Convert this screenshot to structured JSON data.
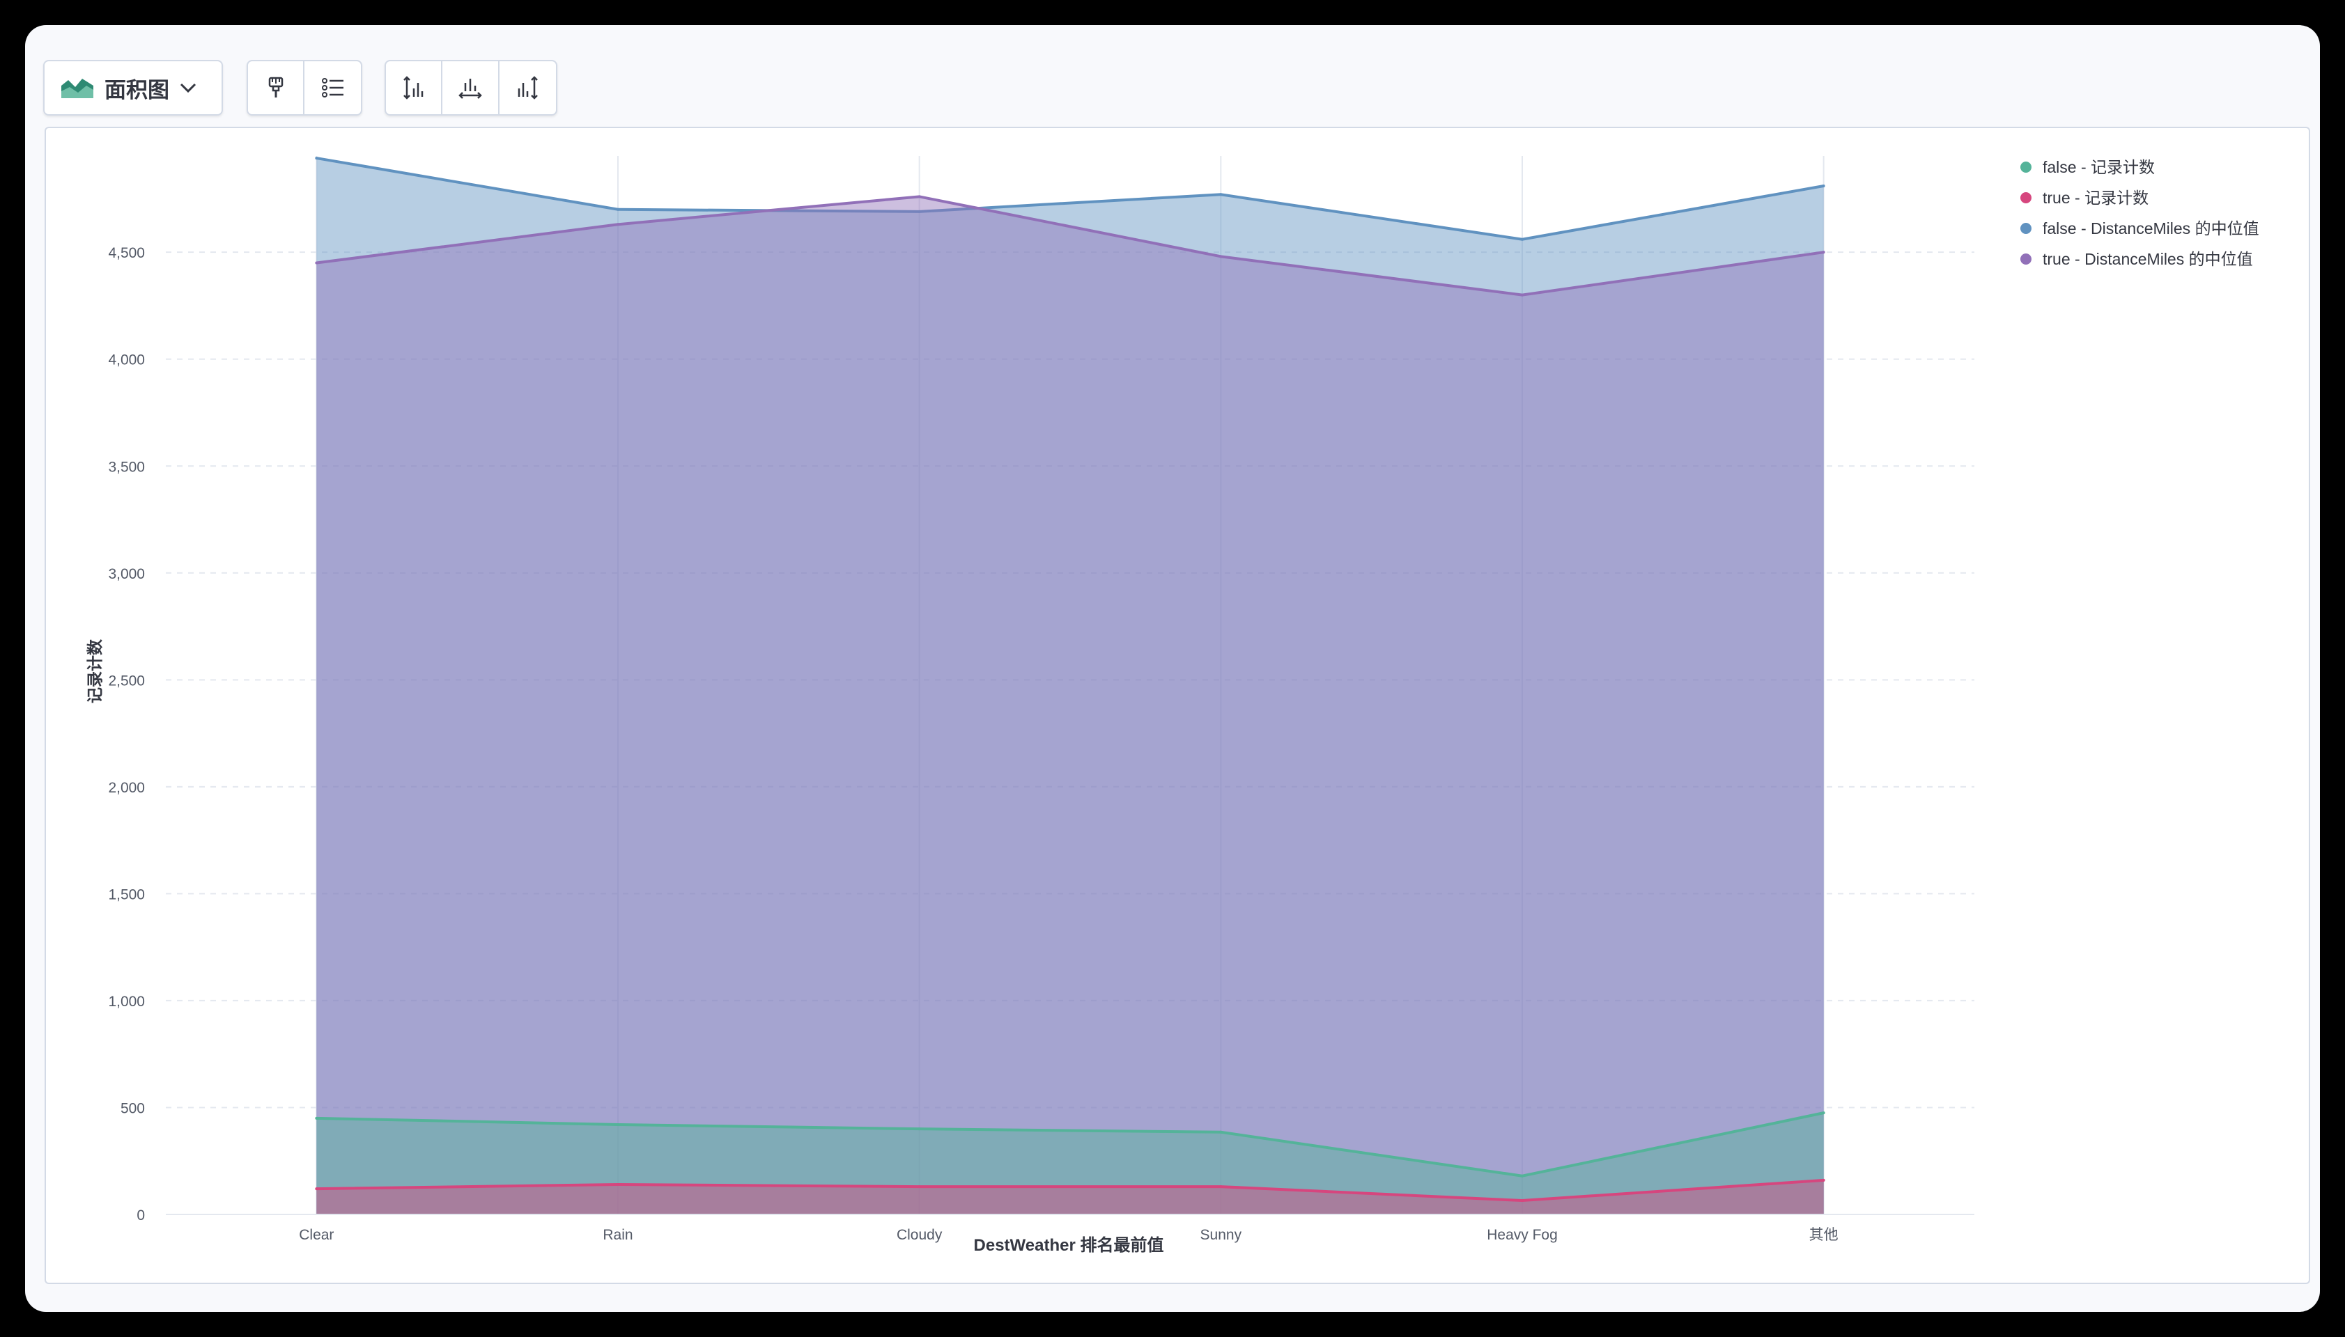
{
  "toolbar": {
    "chart_type_label": "面积图",
    "icons": [
      "area-chart-icon",
      "chevron-down-icon",
      "paintbrush-icon",
      "legend-list-icon",
      "left-axis-icon",
      "bottom-axis-icon",
      "right-axis-icon"
    ]
  },
  "colors": {
    "false_count": "#54b399",
    "true_count": "#d6467e",
    "false_median": "#6092c0",
    "true_median": "#9170b8"
  },
  "chart_data": {
    "type": "area",
    "xlabel": "DestWeather 排名最前值",
    "ylabel": "记录计数",
    "categories": [
      "Clear",
      "Rain",
      "Cloudy",
      "Sunny",
      "Heavy Fog",
      "其他"
    ],
    "ylim": [
      0,
      4950
    ],
    "yticks": [
      0,
      500,
      1000,
      1500,
      2000,
      2500,
      3000,
      3500,
      4000,
      4500
    ],
    "ytick_labels": [
      "0",
      "500",
      "1,000",
      "1,500",
      "2,000",
      "2,500",
      "3,000",
      "3,500",
      "4,000",
      "4,500"
    ],
    "grid": true,
    "legend_position": "top-right",
    "series": [
      {
        "name": "false - 记录计数",
        "color_key": "false_count",
        "values": [
          450,
          420,
          400,
          385,
          180,
          475
        ]
      },
      {
        "name": "true - 记录计数",
        "color_key": "true_count",
        "values": [
          120,
          140,
          130,
          130,
          65,
          160
        ]
      },
      {
        "name": "false - DistanceMiles 的中位值",
        "color_key": "false_median",
        "values": [
          4940,
          4700,
          4690,
          4770,
          4560,
          4810
        ]
      },
      {
        "name": "true - DistanceMiles 的中位值",
        "color_key": "true_median",
        "values": [
          4450,
          4630,
          4760,
          4480,
          4300,
          4500
        ]
      }
    ]
  }
}
